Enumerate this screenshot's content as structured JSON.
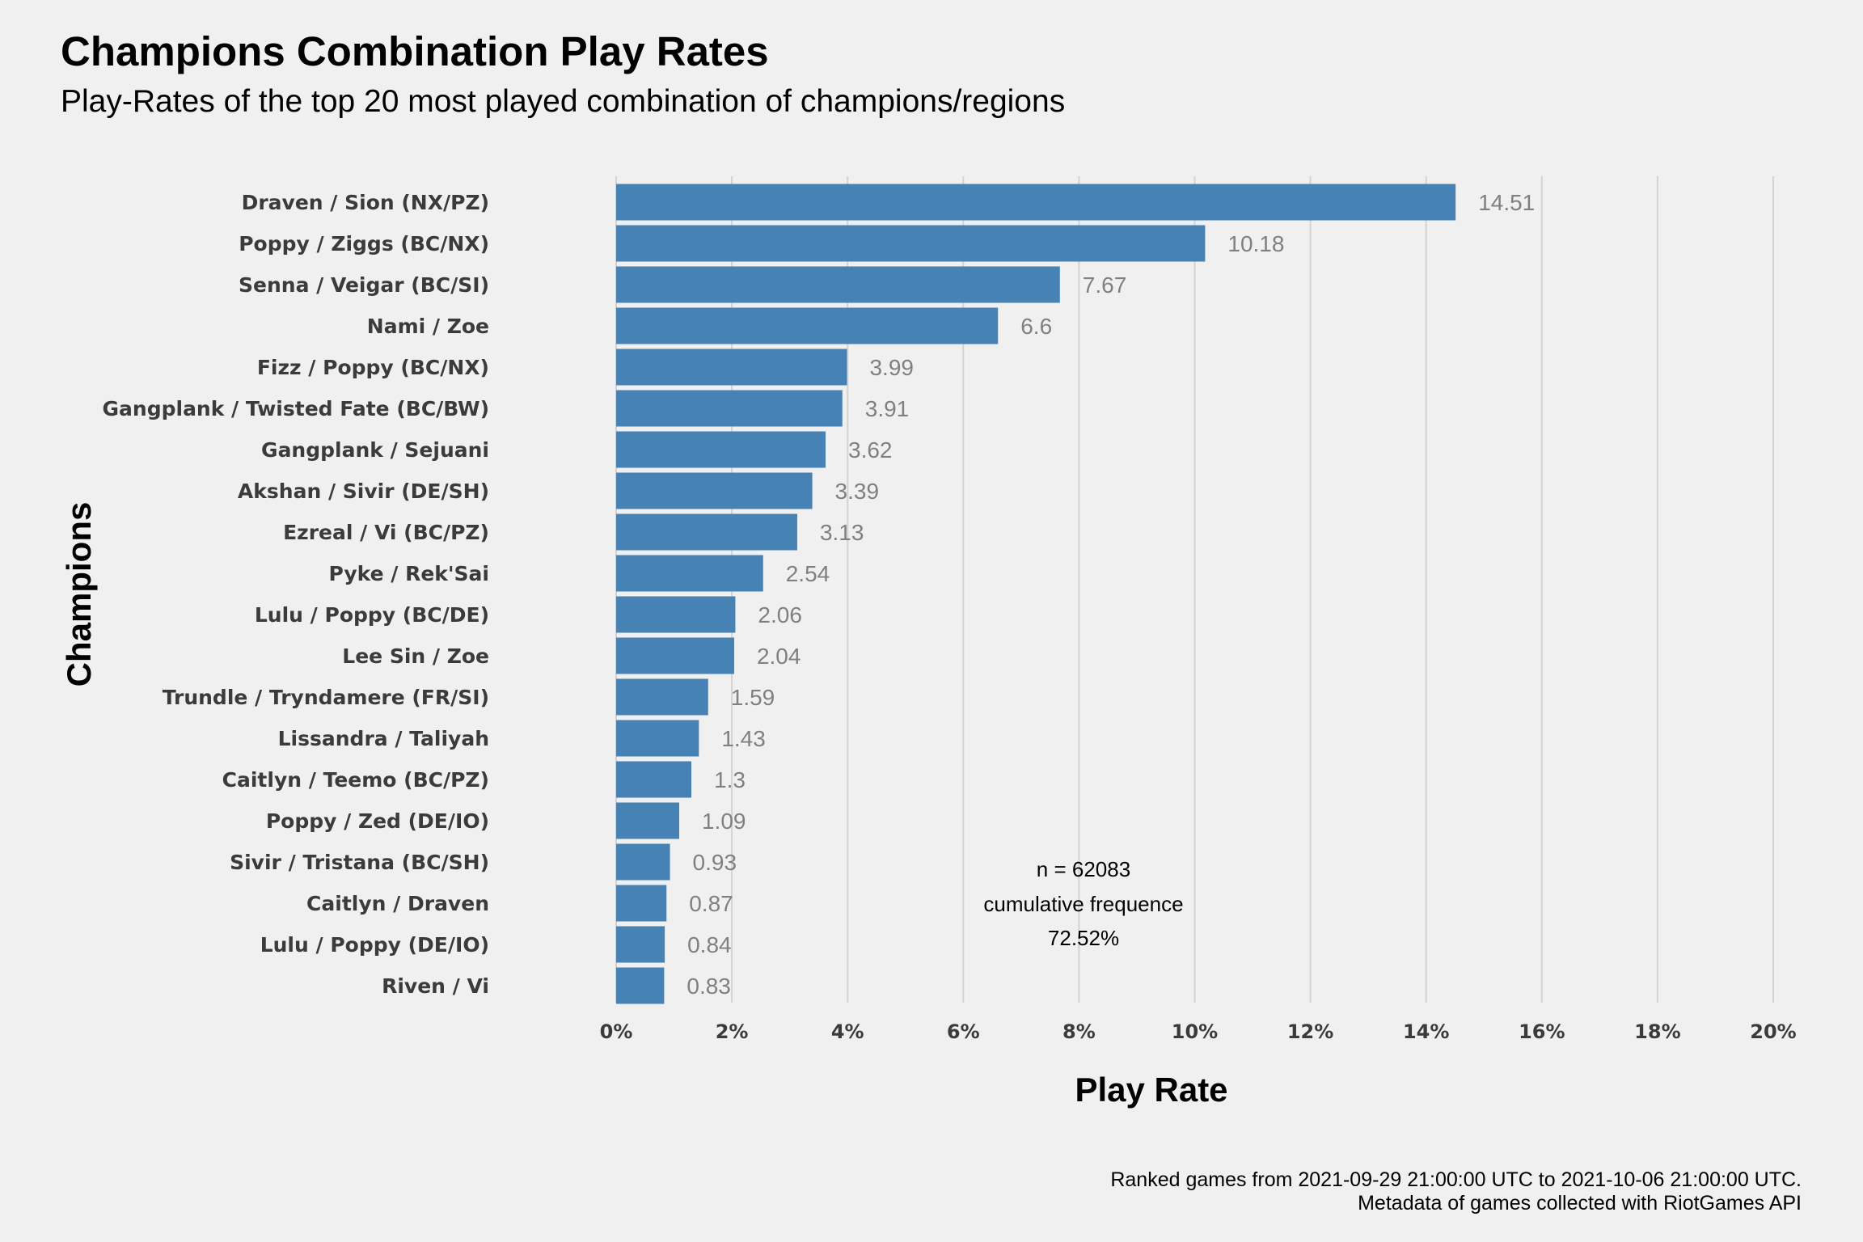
{
  "chart_data": {
    "type": "bar",
    "orientation": "horizontal",
    "title": "Champions Combination Play Rates",
    "subtitle": "Play-Rates of the top 20 most played combination of champions/regions",
    "xlabel": "Play Rate",
    "ylabel": "Champions",
    "xlim": [
      0,
      20
    ],
    "x_ticks": [
      "0%",
      "2%",
      "4%",
      "6%",
      "8%",
      "10%",
      "12%",
      "14%",
      "16%",
      "18%",
      "20%"
    ],
    "grid": "vertical-major",
    "bar_color": "#4682b4",
    "categories": [
      "Draven / Sion (NX/PZ)",
      "Poppy / Ziggs (BC/NX)",
      "Senna / Veigar (BC/SI)",
      "Nami / Zoe",
      "Fizz / Poppy (BC/NX)",
      "Gangplank / Twisted Fate (BC/BW)",
      "Gangplank / Sejuani",
      "Akshan / Sivir (DE/SH)",
      "Ezreal / Vi (BC/PZ)",
      "Pyke / Rek'Sai",
      "Lulu / Poppy (BC/DE)",
      "Lee Sin / Zoe",
      "Trundle / Tryndamere (FR/SI)",
      "Lissandra / Taliyah",
      "Caitlyn / Teemo (BC/PZ)",
      "Poppy / Zed (DE/IO)",
      "Sivir / Tristana (BC/SH)",
      "Caitlyn / Draven",
      "Lulu / Poppy (DE/IO)",
      "Riven / Vi"
    ],
    "values": [
      14.51,
      10.18,
      7.67,
      6.6,
      3.99,
      3.91,
      3.62,
      3.39,
      3.13,
      2.54,
      2.06,
      2.04,
      1.59,
      1.43,
      1.3,
      1.09,
      0.93,
      0.87,
      0.84,
      0.83
    ],
    "value_labels": [
      "14.51",
      "10.18",
      "7.67",
      "6.6",
      "3.99",
      "3.91",
      "3.62",
      "3.39",
      "3.13",
      "2.54",
      "2.06",
      "2.04",
      "1.59",
      "1.43",
      "1.3",
      "1.09",
      "0.93",
      "0.87",
      "0.84",
      "0.83"
    ],
    "annotation": [
      "n = 62083",
      "cumulative frequence",
      "72.52%"
    ],
    "caption": [
      "Ranked games from 2021-09-29 21:00:00 UTC to 2021-10-06 21:00:00 UTC.",
      "Metadata of games collected with RiotGames API"
    ]
  }
}
